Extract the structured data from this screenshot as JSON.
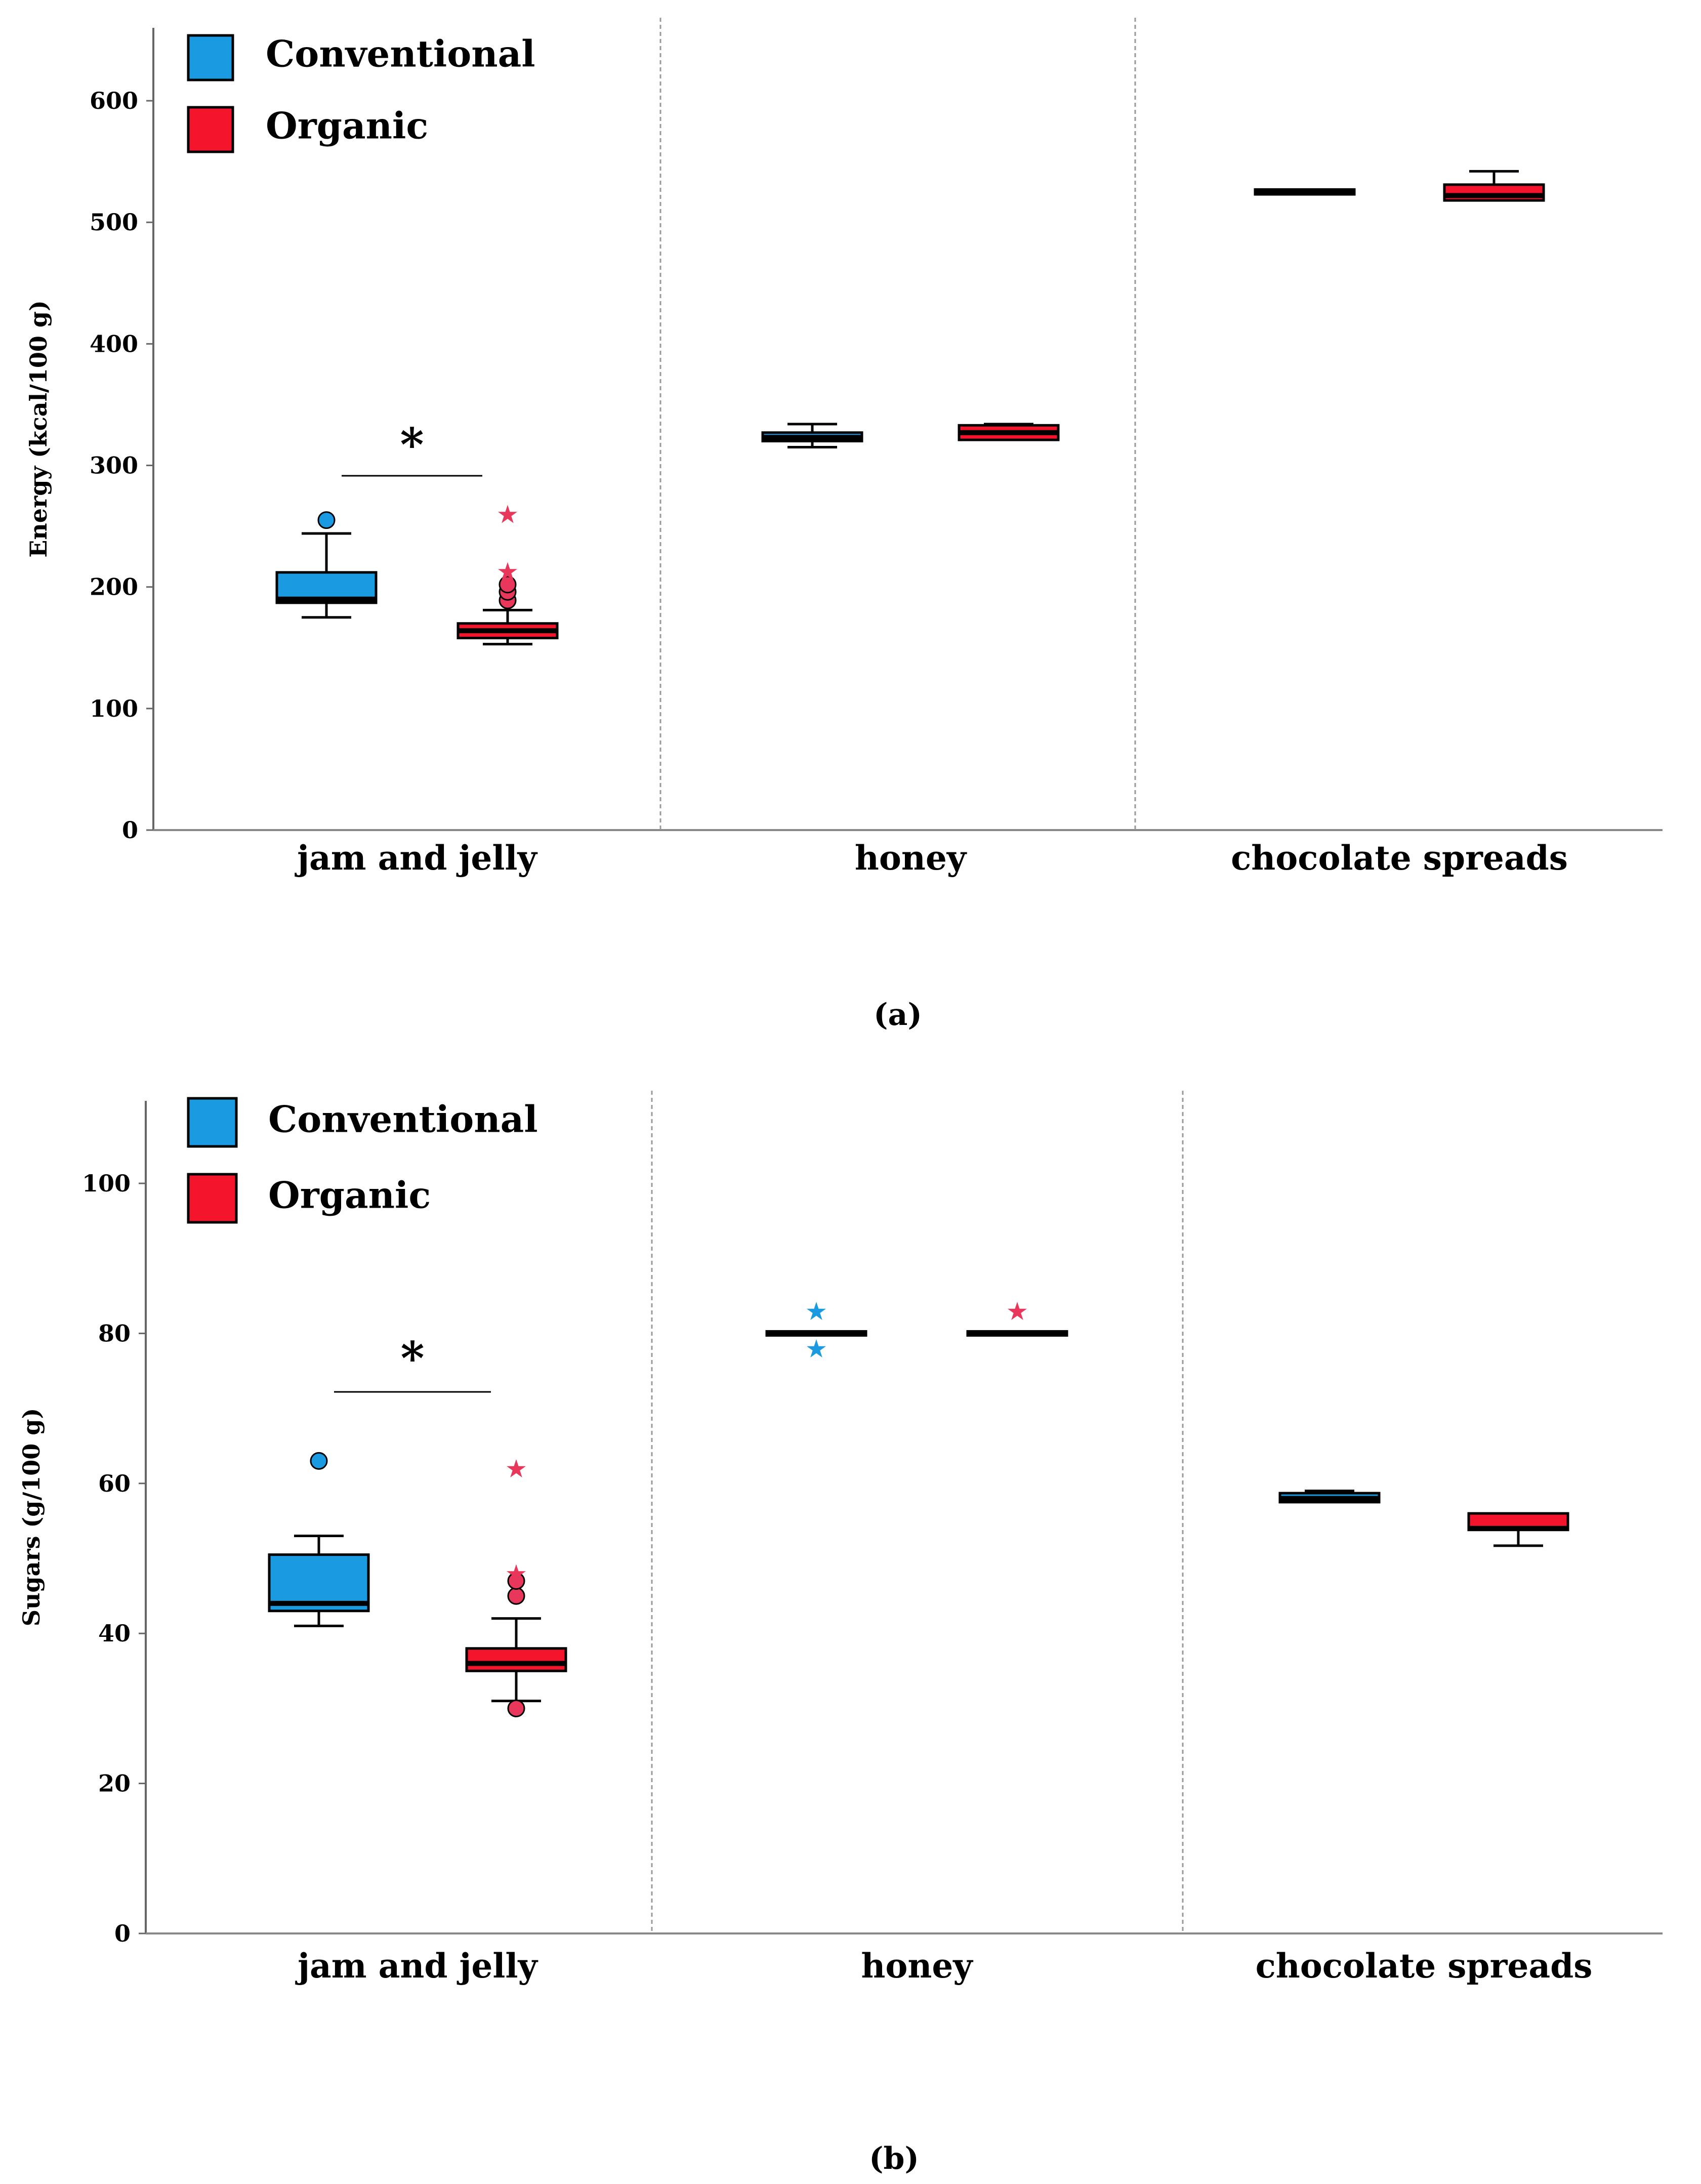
{
  "colors": {
    "conventional": "#1a9ae0",
    "organic": "#f4152c",
    "organic_outlier": "#e8375a"
  },
  "chart_data": [
    {
      "id": "a",
      "type": "box",
      "panel_label": "(a)",
      "ylabel": "Energy (kcal/100 g)",
      "ylim": [
        0,
        660
      ],
      "yticks": [
        0,
        100,
        200,
        300,
        400,
        500,
        600
      ],
      "categories": [
        "jam and jelly",
        "honey",
        "chocolate spreads"
      ],
      "legend": {
        "placement": "top-left",
        "entries": [
          "Conventional",
          "Organic"
        ]
      },
      "significance": {
        "category": "jam and jelly",
        "label": "*"
      },
      "series": [
        {
          "name": "Conventional",
          "boxes": [
            {
              "category": "jam and jelly",
              "whisker_low": 175,
              "q1": 187,
              "median": 190,
              "q3": 212,
              "whisker_high": 244,
              "outliers": [
                255
              ],
              "extremes": []
            },
            {
              "category": "honey",
              "whisker_low": 315,
              "q1": 320,
              "median": 323,
              "q3": 327,
              "whisker_high": 334,
              "outliers": [],
              "extremes": []
            },
            {
              "category": "chocolate spreads",
              "whisker_low": 523,
              "q1": 523,
              "median": 525,
              "q3": 527,
              "whisker_high": 527,
              "outliers": [],
              "extremes": []
            }
          ]
        },
        {
          "name": "Organic",
          "boxes": [
            {
              "category": "jam and jelly",
              "whisker_low": 153,
              "q1": 158,
              "median": 164,
              "q3": 170,
              "whisker_high": 181,
              "outliers": [
                189,
                196,
                202
              ],
              "extremes": [
                213,
                260
              ]
            },
            {
              "category": "honey",
              "whisker_low": 321,
              "q1": 321,
              "median": 327,
              "q3": 333,
              "whisker_high": 334,
              "outliers": [],
              "extremes": []
            },
            {
              "category": "chocolate spreads",
              "whisker_low": 518,
              "q1": 518,
              "median": 522,
              "q3": 531,
              "whisker_high": 542,
              "outliers": [],
              "extremes": []
            }
          ]
        }
      ]
    },
    {
      "id": "b",
      "type": "box",
      "panel_label": "(b)",
      "ylabel": "Sugars (g/100 g)",
      "ylim": [
        0,
        111
      ],
      "yticks": [
        0,
        20,
        40,
        60,
        80,
        100
      ],
      "categories": [
        "jam and jelly",
        "honey",
        "chocolate spreads"
      ],
      "legend": {
        "placement": "top-left",
        "entries": [
          "Conventional",
          "Organic"
        ]
      },
      "significance": {
        "category": "jam and jelly",
        "label": "*"
      },
      "series": [
        {
          "name": "Conventional",
          "boxes": [
            {
              "category": "jam and jelly",
              "whisker_low": 41,
              "q1": 43,
              "median": 44,
              "q3": 50.5,
              "whisker_high": 53,
              "outliers": [
                63
              ],
              "extremes": []
            },
            {
              "category": "honey",
              "whisker_low": 80,
              "q1": 80,
              "median": 80,
              "q3": 80,
              "whisker_high": 80,
              "outliers": [],
              "extremes": [
                83,
                78
              ]
            },
            {
              "category": "chocolate spreads",
              "whisker_low": 57.5,
              "q1": 57.5,
              "median": 58,
              "q3": 58.7,
              "whisker_high": 59,
              "outliers": [],
              "extremes": []
            }
          ]
        },
        {
          "name": "Organic",
          "boxes": [
            {
              "category": "jam and jelly",
              "whisker_low": 31,
              "q1": 35,
              "median": 36,
              "q3": 38,
              "whisker_high": 42,
              "outliers": [
                30,
                45,
                47
              ],
              "extremes": [
                48,
                62
              ]
            },
            {
              "category": "honey",
              "whisker_low": 80,
              "q1": 80,
              "median": 80,
              "q3": 80,
              "whisker_high": 80,
              "outliers": [],
              "extremes": [
                83
              ]
            },
            {
              "category": "chocolate spreads",
              "whisker_low": 51.7,
              "q1": 53.8,
              "median": 54,
              "q3": 56,
              "whisker_high": 56,
              "outliers": [],
              "extremes": []
            }
          ]
        }
      ]
    }
  ]
}
